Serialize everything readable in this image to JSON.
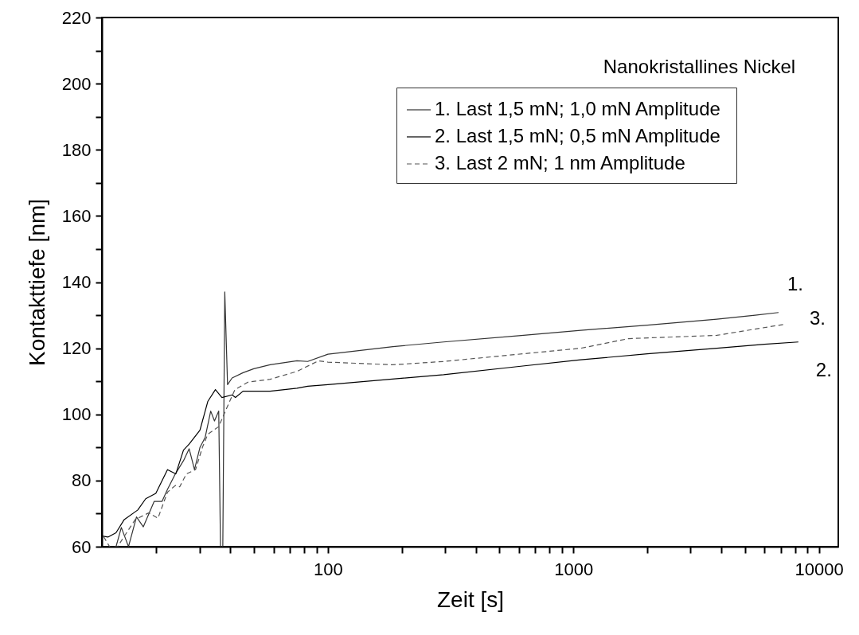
{
  "chart_data": {
    "type": "line",
    "title": "Nanokristallines Nickel",
    "xlabel": "Zeit [s]",
    "ylabel": "Kontakttiefe [nm]",
    "log": "x",
    "xlim": [
      12,
      12000
    ],
    "ylim": [
      60,
      220
    ],
    "xticks": [
      {
        "value": 20,
        "label": null
      },
      {
        "value": 30,
        "label": null
      },
      {
        "value": 40,
        "label": null
      },
      {
        "value": 50,
        "label": null
      },
      {
        "value": 60,
        "label": null
      },
      {
        "value": 70,
        "label": null
      },
      {
        "value": 80,
        "label": null
      },
      {
        "value": 90,
        "label": null
      },
      100,
      {
        "value": 200,
        "label": null
      },
      {
        "value": 300,
        "label": null
      },
      {
        "value": 400,
        "label": null
      },
      {
        "value": 500,
        "label": null
      },
      {
        "value": 600,
        "label": null
      },
      {
        "value": 700,
        "label": null
      },
      {
        "value": 800,
        "label": null
      },
      {
        "value": 900,
        "label": null
      },
      1000,
      {
        "value": 2000,
        "label": null
      },
      {
        "value": 3000,
        "label": null
      },
      {
        "value": 4000,
        "label": null
      },
      {
        "value": 5000,
        "label": null
      },
      {
        "value": 6000,
        "label": null
      },
      {
        "value": 7000,
        "label": null
      },
      {
        "value": 8000,
        "label": null
      },
      {
        "value": 9000,
        "label": null
      },
      10000
    ],
    "yticks": [
      60,
      {
        "value": 70,
        "label": null
      },
      80,
      {
        "value": 90,
        "label": null
      },
      100,
      {
        "value": 110,
        "label": null
      },
      120,
      {
        "value": 130,
        "label": null
      },
      140,
      {
        "value": 150,
        "label": null
      },
      160,
      {
        "value": 170,
        "label": null
      },
      180,
      {
        "value": 190,
        "label": null
      },
      200,
      {
        "value": 210,
        "label": null
      },
      220
    ],
    "grid": false,
    "legend": "top right",
    "marker": "none",
    "series": [
      {
        "name": "1. Last 1,5 mN;  1,0 mN Amplitude",
        "color": "#333333",
        "line_style": "solid",
        "x": [
          13.7,
          14.4,
          15.4,
          16.6,
          17.7,
          19.6,
          21.1,
          22.2,
          23.9,
          25.8,
          27.2,
          28.6,
          30.1,
          31.6,
          33.3,
          34.5,
          35.9,
          36.5,
          37.3,
          38,
          39,
          40.7,
          45.1,
          49.9,
          58.1,
          74.8,
          82.7,
          100,
          184,
          296,
          600,
          1071,
          2000,
          3840,
          5500,
          6850
        ],
        "values": [
          60,
          65.8,
          60,
          69,
          66,
          73.7,
          73.7,
          77.3,
          82,
          86,
          89.6,
          83.3,
          90,
          93,
          101,
          98,
          101,
          60,
          60,
          137,
          109,
          111,
          112.6,
          113.8,
          115,
          116.2,
          116,
          118.2,
          120.5,
          121.9,
          123.8,
          125.4,
          127,
          128.8,
          130,
          130.8
        ]
      },
      {
        "name": "2. Last 1,5 mN;  0,5 mN Amplitude",
        "color": "#000000",
        "line_style": "solid",
        "x": [
          12,
          12.7,
          13.7,
          14.8,
          16.8,
          18.1,
          19.9,
          22.2,
          24,
          25.8,
          27.2,
          30.1,
          32.4,
          34.8,
          37,
          40.7,
          42,
          45.1,
          58.1,
          74.8,
          82.7,
          100,
          296,
          600,
          1071,
          2000,
          3840,
          6000,
          8250
        ],
        "values": [
          63.2,
          62.9,
          64.2,
          68.2,
          71.1,
          74.5,
          76.1,
          83.3,
          82,
          89.2,
          91,
          95.2,
          103.9,
          107.5,
          105.1,
          105.9,
          105.1,
          107,
          107,
          107.9,
          108.5,
          109,
          112,
          114.5,
          116.5,
          118.3,
          120,
          121.2,
          121.9
        ]
      },
      {
        "name": "3. Last 2 mN;     1 nm Amplitude",
        "color": "#555555",
        "line_style": "dashed",
        "x": [
          12.2,
          12.9,
          13.9,
          15,
          16.4,
          18.6,
          20.3,
          22.2,
          23.9,
          24.9,
          26.5,
          28.9,
          30.8,
          32.4,
          35.9,
          38.7,
          41.8,
          47.4,
          58.1,
          74.8,
          91.5,
          100,
          184,
          296,
          1071,
          1677,
          3840,
          7330
        ],
        "values": [
          63,
          60,
          60,
          63.8,
          68.2,
          70.2,
          68.6,
          76.5,
          78.5,
          78.1,
          82,
          83.3,
          90,
          94,
          96.3,
          101.9,
          107.5,
          109.8,
          110.6,
          113,
          116.2,
          115.8,
          115,
          116,
          120,
          122.9,
          123.9,
          127.3
        ]
      }
    ],
    "annotations": [
      {
        "text": "1.",
        "x": 6500,
        "y": 131
      },
      {
        "text": "2.",
        "x": 8250,
        "y": 121.9
      },
      {
        "text": "3.",
        "x": 7330,
        "y": 127.3
      }
    ]
  }
}
